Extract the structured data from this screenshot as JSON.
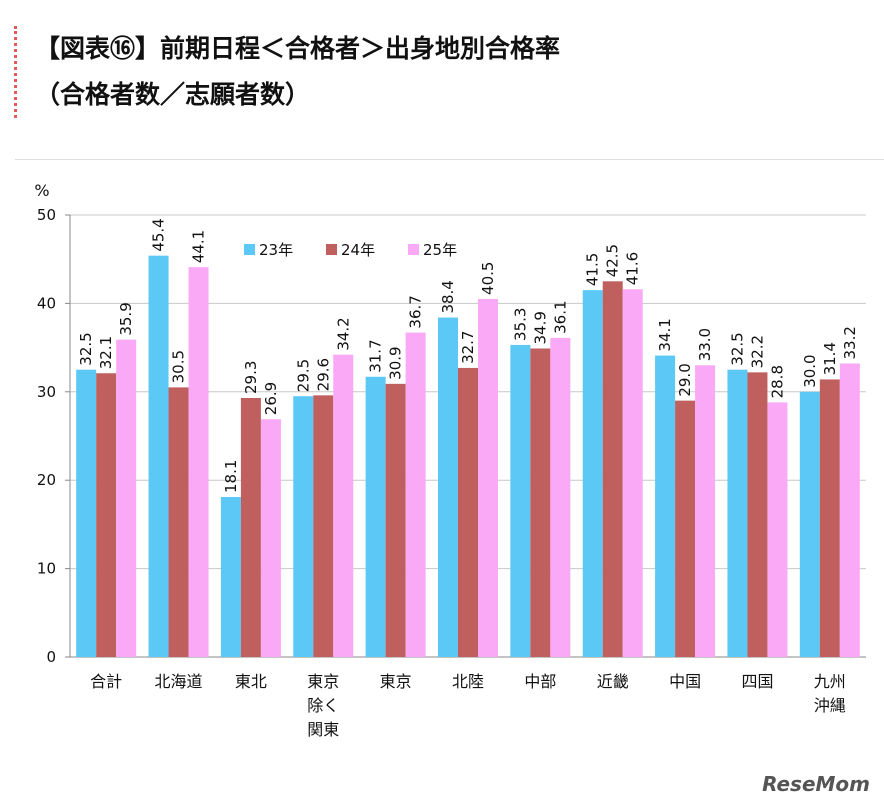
{
  "chart_data": {
    "type": "bar",
    "title": "【図表⑯】前期日程＜合格者＞出身地別合格率",
    "subtitle": "（合格者数／志願者数）",
    "y_label": "%",
    "categories": [
      "合計",
      "北海道",
      "東北",
      "東京\n除く\n関東",
      "東京",
      "北陸",
      "中部",
      "近畿",
      "中国",
      "四国",
      "九州\n沖縄"
    ],
    "series": [
      {
        "name": "23年",
        "color": "#5bc8f5",
        "values": [
          32.5,
          45.4,
          18.1,
          29.5,
          31.7,
          38.4,
          35.3,
          41.5,
          34.1,
          32.5,
          30.0
        ],
        "value_labels": [
          "32.5",
          "45.4",
          "18.1",
          "29.5",
          "31.7",
          "38.4",
          "35.3",
          "41.5",
          "34.1",
          "32.5",
          "30.0"
        ]
      },
      {
        "name": "24年",
        "color": "#c0605e",
        "values": [
          32.1,
          30.5,
          29.3,
          29.6,
          30.9,
          32.7,
          34.9,
          42.5,
          29.0,
          32.2,
          31.4
        ],
        "value_labels": [
          "32.1",
          "30.5",
          "29.3",
          "29.6",
          "30.9",
          "32.7",
          "34.9",
          "42.5",
          "29.0",
          "32.2",
          "31.4"
        ]
      },
      {
        "name": "25年",
        "color": "#f9a9f5",
        "values": [
          35.9,
          44.1,
          26.9,
          34.2,
          36.7,
          40.5,
          36.1,
          41.6,
          33.0,
          28.8,
          33.2
        ],
        "value_labels": [
          "35.9",
          "44.1",
          "26.9",
          "34.2",
          "36.7",
          "40.5",
          "36.1",
          "41.6",
          "33.0",
          "28.8",
          "33.2"
        ]
      }
    ],
    "ylim": [
      0,
      50
    ],
    "yticks": [
      0,
      10,
      20,
      30,
      40,
      50
    ],
    "grid": true,
    "legend": "top",
    "watermark": "ReseMom"
  }
}
